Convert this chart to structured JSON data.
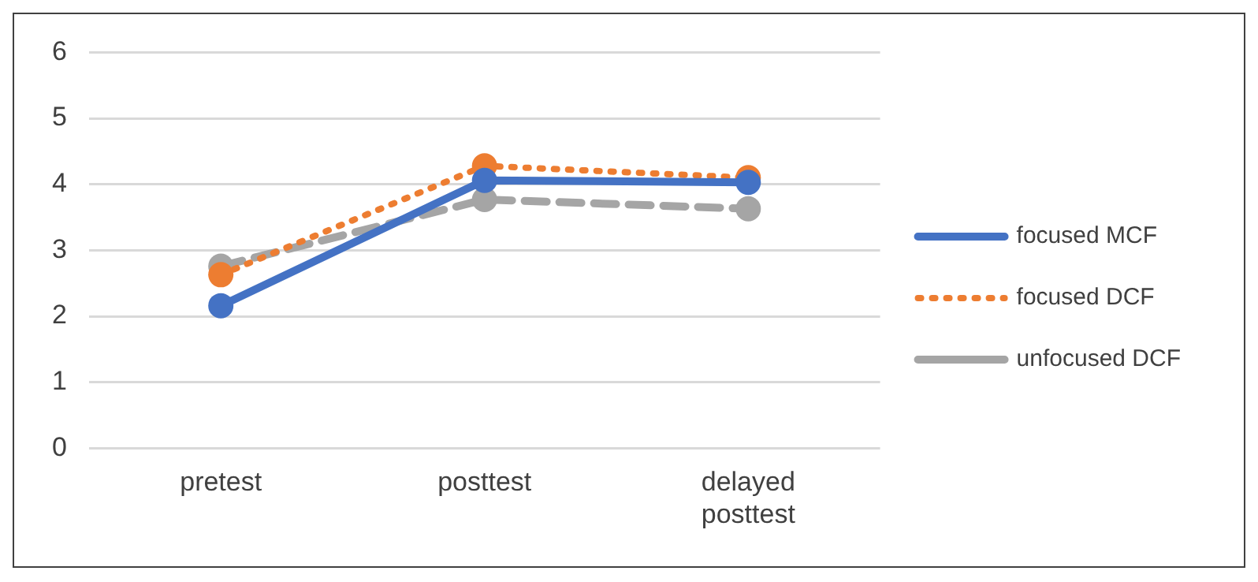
{
  "chart_data": {
    "type": "line",
    "categories": [
      "pretest",
      "posttest",
      "delayed posttest"
    ],
    "series": [
      {
        "name": "focused MCF",
        "color": "#4472c4",
        "values": [
          2.16,
          4.06,
          4.03
        ],
        "line_style": "solid"
      },
      {
        "name": "focused DCF",
        "color": "#ed7d31",
        "values": [
          2.63,
          4.28,
          4.1
        ],
        "line_style": "dotted"
      },
      {
        "name": "unfocused DCF",
        "color": "#a5a5a5",
        "values": [
          2.76,
          3.77,
          3.63
        ],
        "line_style": "dashed"
      }
    ],
    "ylim": [
      0,
      6
    ],
    "yticks": [
      0,
      1,
      2,
      3,
      4,
      5,
      6
    ],
    "grid": "y",
    "legend": "right",
    "marker": "circle"
  }
}
